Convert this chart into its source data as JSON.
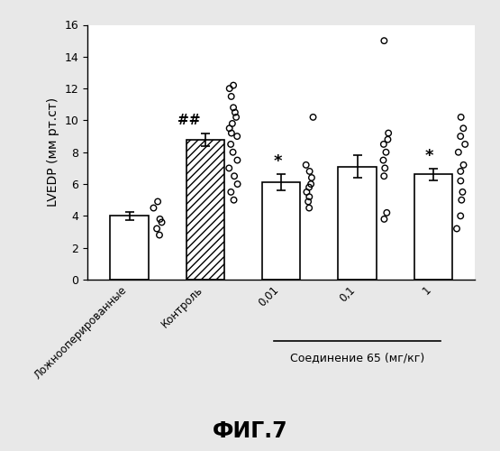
{
  "categories": [
    "Ложнооперированные",
    "Контроль",
    "0,01",
    "0,1",
    "1"
  ],
  "bar_heights": [
    4.0,
    8.8,
    6.1,
    7.1,
    6.6
  ],
  "bar_errors": [
    0.25,
    0.4,
    0.5,
    0.7,
    0.35
  ],
  "ylabel": "LVEDP (мм рт.ст)",
  "ylim": [
    0,
    16
  ],
  "yticks": [
    0,
    2,
    4,
    6,
    8,
    10,
    12,
    14,
    16
  ],
  "xlabel_compound": "Соединение 65 (мг/кг)",
  "figure_title": "ФИГ.7",
  "annotation_hashes": "##",
  "annotation_star1": "*",
  "annotation_star2": "*",
  "scatter_data": {
    "group0": [
      4.5,
      3.8,
      3.2,
      2.8,
      3.6,
      4.9
    ],
    "group1": [
      12.2,
      12.0,
      11.5,
      10.8,
      10.5,
      10.2,
      9.8,
      9.5,
      9.2,
      9.0,
      8.5,
      8.0,
      7.5,
      7.0,
      6.5,
      6.0,
      5.5,
      5.0
    ],
    "group2": [
      10.2,
      7.2,
      6.8,
      6.4,
      6.0,
      5.8,
      5.5,
      5.2,
      4.9,
      4.5
    ],
    "group3": [
      15.0,
      9.2,
      8.8,
      8.5,
      8.0,
      7.5,
      7.0,
      6.5,
      4.2,
      3.8
    ],
    "group4": [
      10.2,
      9.5,
      9.0,
      8.5,
      8.0,
      7.2,
      6.8,
      6.2,
      5.5,
      5.0,
      4.0,
      3.2
    ]
  },
  "background_color": "#e8e8e8",
  "plot_bg": "white",
  "bar_edge_color": "black",
  "bar_linewidth": 1.2,
  "scatter_size": 22
}
